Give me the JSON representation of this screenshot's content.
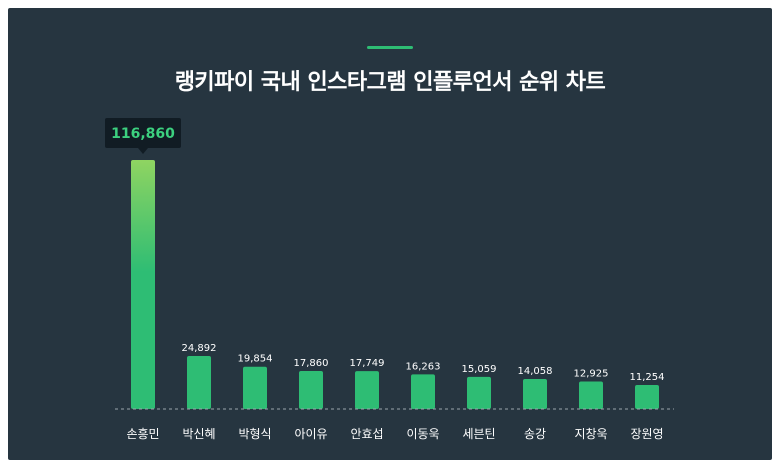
{
  "chart_data": {
    "type": "bar",
    "title": "랭키파이 국내 인스타그램 인플루언서 순위 차트",
    "categories": [
      "손흥민",
      "박신혜",
      "박형식",
      "아이유",
      "안효섭",
      "이동욱",
      "세븐틴",
      "송강",
      "지창욱",
      "장원영"
    ],
    "values": [
      116860,
      24892,
      19854,
      17860,
      17749,
      16263,
      15059,
      14058,
      12925,
      11254
    ],
    "value_labels": [
      "116,860",
      "24,892",
      "19,854",
      "17,860",
      "17,749",
      "16,263",
      "15,059",
      "14,058",
      "12,925",
      "11,254"
    ],
    "highlight_index": 0,
    "ylim": [
      0,
      116860
    ],
    "grid": false,
    "legend": "none"
  },
  "colors": {
    "background": "#263540",
    "bar": "#2ebd74",
    "bar_highlight_top": "#8fd461",
    "tooltip_bg": "#111c24",
    "tooltip_text": "#3cd07f",
    "baseline": "#9aa5ad"
  }
}
